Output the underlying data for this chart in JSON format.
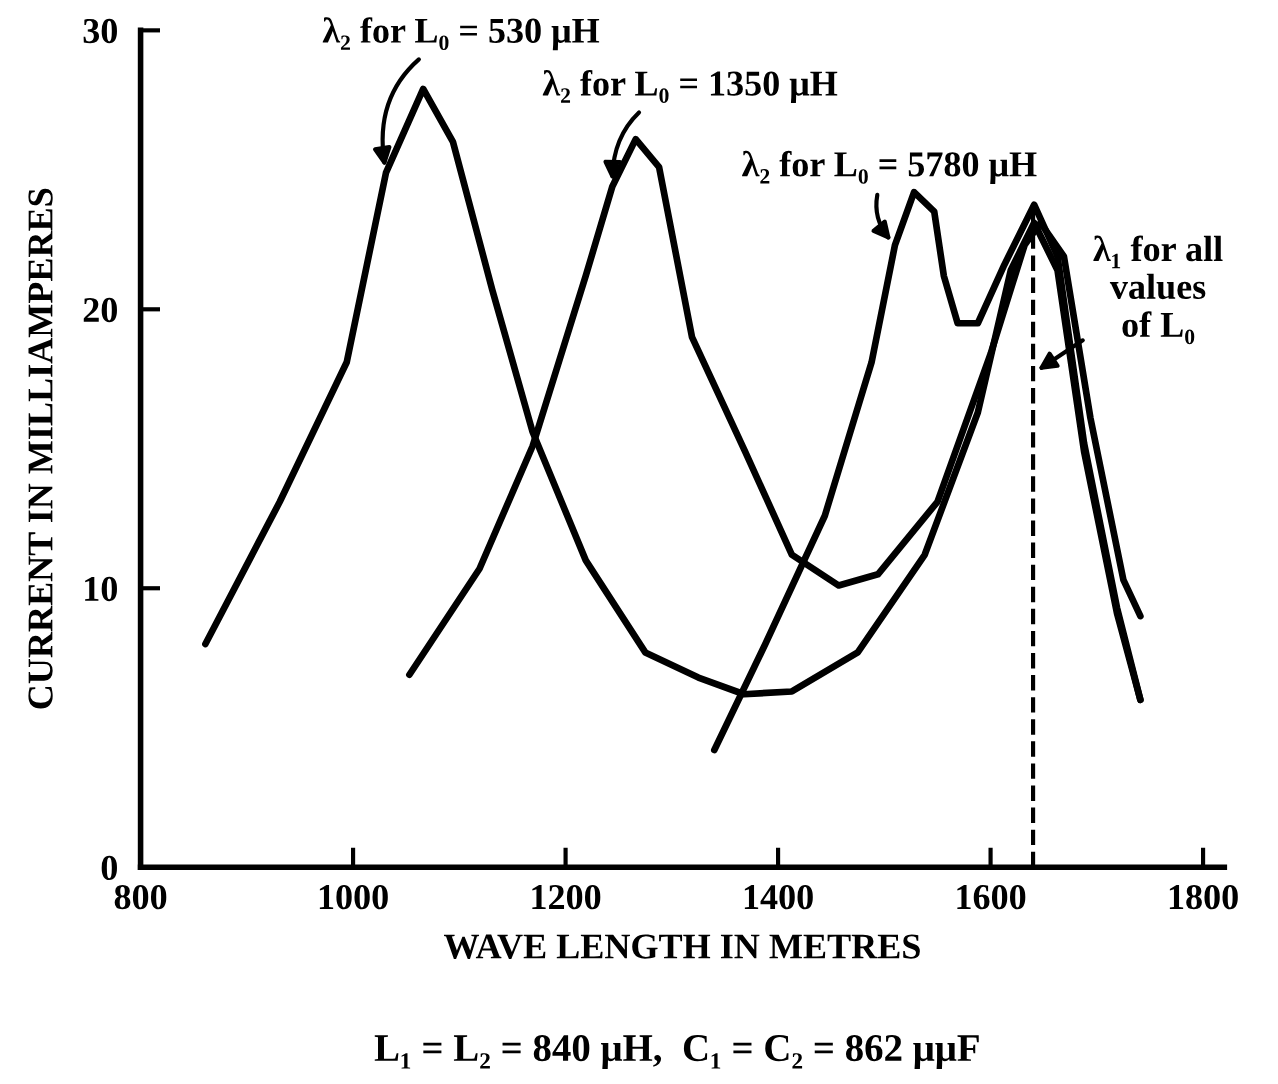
{
  "chart_data": {
    "type": "line",
    "xlabel": "WAVE LENGTH IN METRES",
    "ylabel": "CURRENT IN MILLIAMPERES",
    "xlim": [
      800,
      1820
    ],
    "ylim": [
      0,
      30
    ],
    "xticks": [
      800,
      1000,
      1200,
      1400,
      1600,
      1800
    ],
    "yticks": [
      0,
      10,
      20,
      30
    ],
    "grid": false,
    "marker": "none",
    "line_style": "solid",
    "series": [
      {
        "color": "#000000",
        "x": [
          861,
          931,
          994,
          1031,
          1066,
          1094,
          1131,
          1169,
          1219,
          1275,
          1325,
          1368,
          1413,
          1475,
          1538,
          1588,
          1619,
          1641,
          1663,
          1688,
          1719,
          1741
        ],
        "values": [
          8.0,
          13.1,
          18.1,
          24.9,
          27.9,
          26.0,
          20.7,
          15.6,
          11.0,
          7.7,
          6.8,
          6.2,
          6.3,
          7.7,
          11.2,
          16.3,
          21.4,
          23.1,
          21.4,
          14.9,
          9.1,
          6.0
        ]
      },
      {
        "color": "#000000",
        "x": [
          1053,
          1119,
          1169,
          1219,
          1244,
          1266,
          1288,
          1319,
          1369,
          1413,
          1457,
          1494,
          1550,
          1600,
          1632,
          1647,
          1669,
          1694,
          1725,
          1741
        ],
        "values": [
          6.9,
          10.7,
          15.1,
          21.2,
          24.4,
          26.1,
          25.1,
          19.0,
          14.9,
          11.2,
          10.1,
          10.5,
          13.1,
          18.4,
          22.3,
          23.1,
          21.9,
          16.1,
          10.3,
          9.0
        ]
      },
      {
        "color": "#000000",
        "x": [
          1340,
          1388,
          1444,
          1488,
          1510,
          1528,
          1547,
          1556,
          1569,
          1588,
          1613,
          1641,
          1663,
          1688,
          1719,
          1741
        ],
        "values": [
          4.2,
          8.0,
          12.6,
          18.1,
          22.3,
          24.2,
          23.5,
          21.2,
          19.5,
          19.5,
          21.6,
          23.75,
          21.9,
          15.2,
          9.3,
          6.0
        ]
      }
    ],
    "ref_lines": [
      {
        "axis": "x",
        "value": 1640,
        "line_style": "dashed",
        "color": "#000000"
      }
    ],
    "annotations": [
      {
        "text": "λ₂ for L₀ = 530 μH",
        "x": 1031,
        "y": 24.9
      },
      {
        "text": "λ₂ for L₀ = 1350 μH",
        "x": 1244,
        "y": 24.4
      },
      {
        "text": "λ₂ for L₀ = 5780 μH",
        "x": 1510,
        "y": 22.3
      },
      {
        "text": "λ₁ for all\nvalues\nof L₀",
        "x": 1640,
        "y": 17.7
      },
      "L₁ = L₂ = 840 μH,  C₁ = C₂ = 862 μμF"
    ]
  }
}
